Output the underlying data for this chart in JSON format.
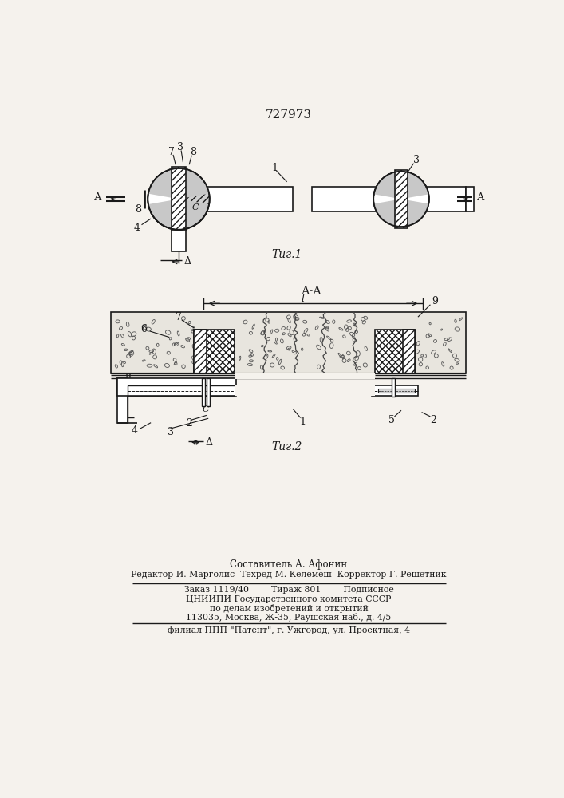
{
  "patent_number": "727973",
  "fig1_caption": "Τиг.1",
  "fig2_caption": "Τиг.2",
  "section_label": "А-А",
  "bg_color": "#f5f2ed",
  "line_color": "#1a1a1a",
  "footer_lines": [
    "Составитель А. Афонин",
    "Редактор И. Марголис  Техред М. Келемеш  Корректор Г. Решетник",
    "Заказ 1119/40        Тираж 801        Подписное",
    "ЦНИИПИ Государственного комитета СССР",
    "по делам изобретений и открытий",
    "113035, Москва, Ж-35, Раушская наб., д. 4/5",
    "филиал ППП \"Патент\", г. Ужгород, ул. Проектная, 4"
  ]
}
